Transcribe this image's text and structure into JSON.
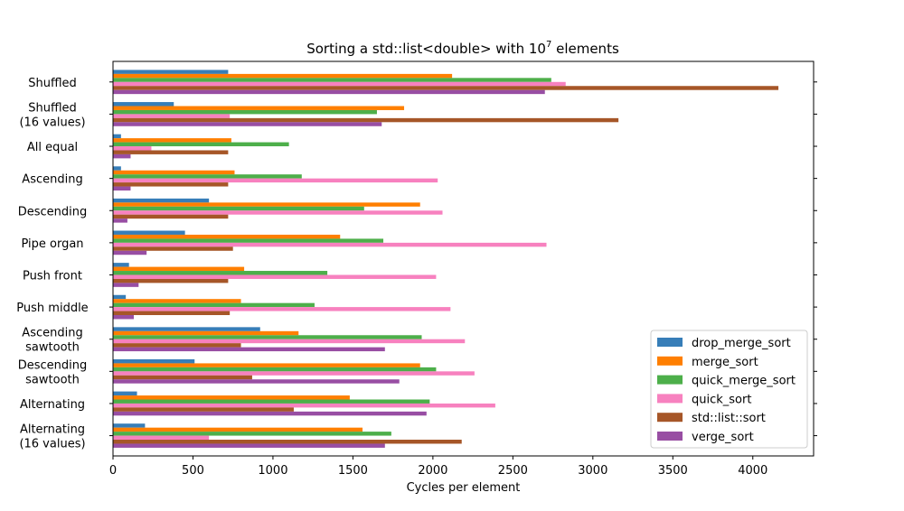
{
  "chart_data": {
    "type": "bar",
    "orientation": "horizontal",
    "title_prefix": "Sorting a std::list<double> with 10",
    "title_exponent": "7",
    "title_suffix": " elements",
    "xlabel": "Cycles per element",
    "ylabel": "",
    "xlim": [
      0,
      4380
    ],
    "xticks": [
      0,
      500,
      1000,
      1500,
      2000,
      2500,
      3000,
      3500,
      4000
    ],
    "legend_position": "bottom-right",
    "grid": false,
    "categories": [
      "Shuffled",
      "Shuffled\n(16 values)",
      "All equal",
      "Ascending",
      "Descending",
      "Pipe organ",
      "Push front",
      "Push middle",
      "Ascending\nsawtooth",
      "Descending\nsawtooth",
      "Alternating",
      "Alternating\n(16 values)"
    ],
    "series": [
      {
        "name": "drop_merge_sort",
        "color": "#377eb8",
        "values": [
          720,
          380,
          50,
          50,
          600,
          450,
          100,
          80,
          920,
          510,
          150,
          200
        ]
      },
      {
        "name": "merge_sort",
        "color": "#ff7f00",
        "values": [
          2120,
          1820,
          740,
          760,
          1920,
          1420,
          820,
          800,
          1160,
          1920,
          1480,
          1560
        ]
      },
      {
        "name": "quick_merge_sort",
        "color": "#4daf4a",
        "values": [
          2740,
          1650,
          1100,
          1180,
          1570,
          1690,
          1340,
          1260,
          1930,
          2020,
          1980,
          1740
        ]
      },
      {
        "name": "quick_sort",
        "color": "#f781bf",
        "values": [
          2830,
          730,
          240,
          2030,
          2060,
          2710,
          2020,
          2110,
          2200,
          2260,
          2390,
          600
        ]
      },
      {
        "name": "std::list::sort",
        "color": "#a65628",
        "values": [
          4160,
          3160,
          720,
          720,
          720,
          750,
          720,
          730,
          800,
          870,
          1130,
          2180
        ]
      },
      {
        "name": "verge_sort",
        "color": "#984ea3",
        "values": [
          2700,
          1680,
          110,
          110,
          90,
          210,
          160,
          130,
          1700,
          1790,
          1960,
          1700
        ]
      }
    ]
  }
}
